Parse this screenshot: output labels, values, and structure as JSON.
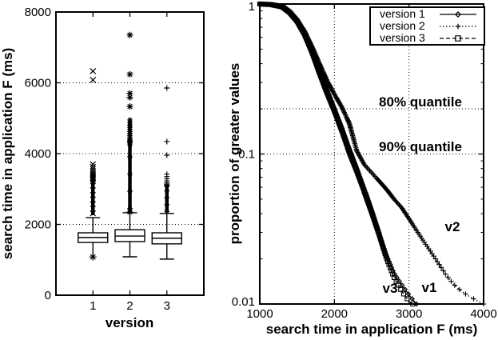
{
  "chart_data": {
    "type": [
      "boxplot",
      "line"
    ],
    "boxplot": {
      "title": "",
      "ylabel": "search time in application F (ms)",
      "xlabel": "version",
      "ylim": [
        0,
        8000
      ],
      "yticks": [
        0,
        2000,
        4000,
        6000,
        8000
      ],
      "ytick_labels": [
        "0",
        "2000",
        "4000",
        "6000",
        "8000"
      ],
      "grid_y": [
        2000,
        4000,
        6000
      ],
      "categories": [
        "1",
        "2",
        "3"
      ],
      "boxes": [
        {
          "version": "1",
          "marker": "cross",
          "whisker_low": 1080,
          "low_cap": false,
          "low_outlier": 1080,
          "q1": 1490,
          "median": 1630,
          "q3": 1763,
          "whisker_high": 2190,
          "dense_outliers": [
            2260,
            3300
          ],
          "sparse_outliers": [
            3300,
            3700
          ],
          "isolated_outliers": [
            6080,
            6330
          ]
        },
        {
          "version": "2",
          "marker": "asterisk",
          "whisker_low": 1085,
          "low_cap": true,
          "q1": 1515,
          "median": 1670,
          "q3": 1850,
          "whisker_high": 2330,
          "dense_outliers": [
            2350,
            4300
          ],
          "sparse_outliers": [
            4300,
            4950
          ],
          "isolated_outliers": [
            2350,
            5330,
            5590,
            5700,
            6240,
            7350
          ]
        },
        {
          "version": "3",
          "marker": "plus",
          "whisker_low": 1020,
          "low_cap": true,
          "q1": 1450,
          "median": 1610,
          "q3": 1763,
          "whisker_high": 2310,
          "dense_outliers": [
            2330,
            3100
          ],
          "sparse_outliers": [
            3100,
            3420
          ],
          "isolated_outliers": [
            3955,
            4340,
            5853
          ]
        }
      ]
    },
    "survival": {
      "title": "",
      "ylabel": "proportion of greater values",
      "xlabel": "search time in application F (ms)",
      "xlim": [
        1000,
        4000
      ],
      "ylim_log": [
        0.01,
        1
      ],
      "xticks": [
        1000,
        2000,
        3000,
        4000
      ],
      "xtick_labels": [
        "1000",
        "2000",
        "3000",
        "4000"
      ],
      "ytick_labels": [
        "1",
        "0.1",
        "0.01"
      ],
      "yticks": [
        1,
        0.1,
        0.01
      ],
      "grid_x": [
        2000,
        3000
      ],
      "grid_y": [
        0.2,
        0.1
      ],
      "legend_position": "top-right",
      "annotations": {
        "q80": "80% quantile",
        "q90": "90% quantile",
        "v1": "v1",
        "v2": "v2",
        "v3": "v3"
      },
      "series": [
        {
          "name": "version 1",
          "short": "v1",
          "marker": "diamond",
          "line": "solid",
          "x": [
            1000,
            1150,
            1300,
            1400,
            1500,
            1600,
            1700,
            1800,
            1900,
            2000,
            2100,
            2200,
            2300,
            2400,
            2500,
            2600,
            2700,
            2800,
            2900,
            3000,
            3100
          ],
          "s": [
            1.0,
            0.99,
            0.95,
            0.87,
            0.76,
            0.62,
            0.47,
            0.34,
            0.25,
            0.19,
            0.14,
            0.1,
            0.075,
            0.055,
            0.04,
            0.029,
            0.021,
            0.016,
            0.0135,
            0.0115,
            0.01
          ]
        },
        {
          "name": "version 2",
          "short": "v2",
          "marker": "plus",
          "line": "dotted",
          "x": [
            1000,
            1150,
            1300,
            1400,
            1500,
            1600,
            1700,
            1800,
            1900,
            2000,
            2100,
            2200,
            2300,
            2400,
            2500,
            2600,
            2700,
            2800,
            2900,
            3000,
            3100,
            3200,
            3300,
            3400,
            3500,
            3600,
            3700,
            3800,
            3900,
            4000
          ],
          "s": [
            1.0,
            0.99,
            0.96,
            0.89,
            0.79,
            0.66,
            0.52,
            0.4,
            0.31,
            0.25,
            0.205,
            0.16,
            0.105,
            0.085,
            0.075,
            0.066,
            0.058,
            0.05,
            0.044,
            0.037,
            0.031,
            0.026,
            0.022,
            0.0185,
            0.0155,
            0.0135,
            0.0122,
            0.0113,
            0.0106,
            0.01
          ]
        },
        {
          "name": "version 3",
          "short": "v3",
          "marker": "square",
          "line": "dashed",
          "x": [
            1000,
            1150,
            1300,
            1400,
            1500,
            1600,
            1700,
            1800,
            1900,
            2000,
            2100,
            2200,
            2300,
            2400,
            2500,
            2600,
            2700,
            2800,
            2900,
            3000,
            3050
          ],
          "s": [
            1.0,
            0.992,
            0.96,
            0.88,
            0.77,
            0.63,
            0.48,
            0.35,
            0.26,
            0.195,
            0.145,
            0.105,
            0.078,
            0.057,
            0.041,
            0.029,
            0.02,
            0.015,
            0.0122,
            0.0104,
            0.01
          ]
        }
      ]
    }
  }
}
